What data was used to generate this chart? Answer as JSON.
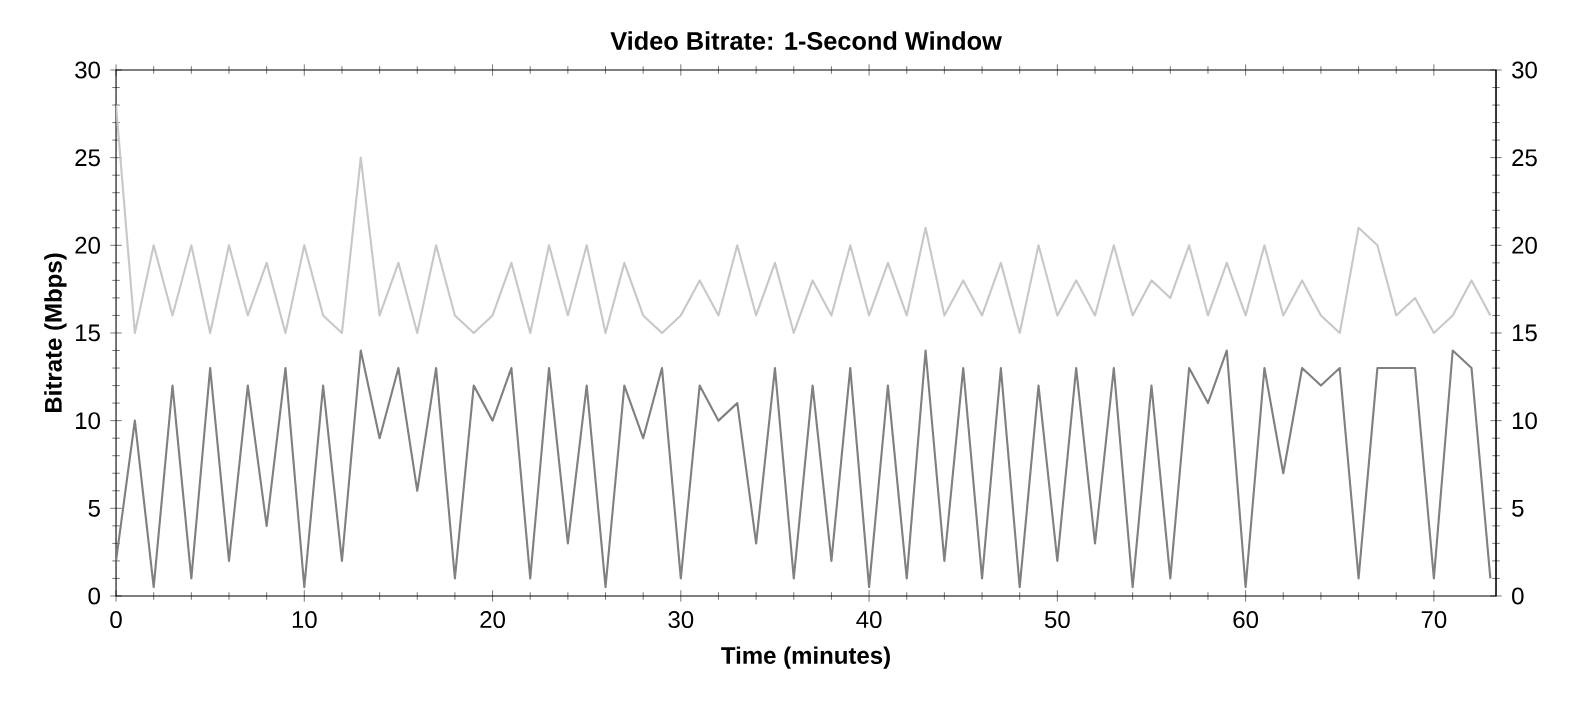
{
  "chart_data": {
    "type": "line",
    "title": "Video Bitrate: 1-Second Window",
    "xlabel": "Time (minutes)",
    "ylabel": "Bitrate (Mbps)",
    "x": [
      0,
      1,
      2,
      3,
      4,
      5,
      6,
      7,
      8,
      9,
      10,
      11,
      12,
      13,
      14,
      15,
      16,
      17,
      18,
      19,
      20,
      21,
      22,
      23,
      24,
      25,
      26,
      27,
      28,
      29,
      30,
      31,
      32,
      33,
      34,
      35,
      36,
      37,
      38,
      39,
      40,
      41,
      42,
      43,
      44,
      45,
      46,
      47,
      48,
      49,
      50,
      51,
      52,
      53,
      54,
      55,
      56,
      57,
      58,
      59,
      60,
      61,
      62,
      63,
      64,
      65,
      66,
      67,
      68,
      69,
      70,
      71,
      72,
      73
    ],
    "series": [
      {
        "color": "#c8c8c8",
        "values": [
          28,
          15,
          20,
          16,
          20,
          15,
          20,
          16,
          19,
          15,
          20,
          16,
          15,
          25,
          16,
          19,
          15,
          20,
          16,
          15,
          16,
          19,
          15,
          20,
          16,
          20,
          15,
          19,
          16,
          15,
          16,
          18,
          16,
          20,
          16,
          19,
          15,
          18,
          16,
          20,
          16,
          19,
          16,
          21,
          16,
          18,
          16,
          19,
          15,
          20,
          16,
          18,
          16,
          20,
          16,
          18,
          17,
          20,
          16,
          19,
          16,
          20,
          16,
          18,
          16,
          15,
          21,
          20,
          16,
          17,
          15,
          16,
          18,
          16
        ]
      },
      {
        "color": "#808080",
        "values": [
          2,
          10,
          0.5,
          12,
          1,
          13,
          2,
          12,
          4,
          13,
          0.5,
          12,
          2,
          14,
          9,
          13,
          6,
          13,
          1,
          12,
          10,
          13,
          1,
          13,
          3,
          12,
          0.5,
          12,
          9,
          13,
          1,
          12,
          10,
          11,
          3,
          13,
          1,
          12,
          2,
          13,
          0.5,
          12,
          1,
          14,
          2,
          13,
          1,
          13,
          0.5,
          12,
          2,
          13,
          3,
          13,
          0.5,
          12,
          1,
          13,
          11,
          14,
          0.5,
          13,
          7,
          13,
          12,
          13,
          1,
          13,
          13,
          13,
          1,
          14,
          13,
          1
        ]
      }
    ],
    "xlim": [
      0,
      73.3
    ],
    "xticks": [
      0,
      10,
      20,
      30,
      40,
      50,
      60,
      70
    ],
    "ylim": [
      0,
      30
    ],
    "yticks": [
      0,
      5,
      10,
      15,
      20,
      25,
      30
    ],
    "y2lim": [
      0,
      30
    ],
    "y2ticks": [
      0,
      5,
      10,
      15,
      20,
      25,
      30
    ],
    "grid": false,
    "legend": false,
    "marker": "none",
    "line_style": "solid"
  }
}
